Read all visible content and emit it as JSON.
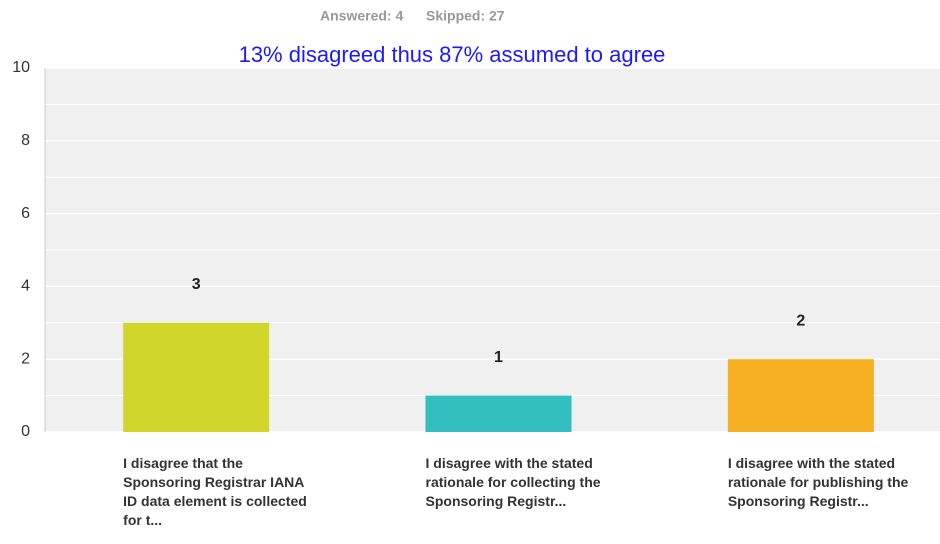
{
  "chart_data": {
    "type": "bar",
    "answered": "Answered: 4",
    "skipped": "Skipped: 27",
    "annotation": "13% disagreed thus 87% assumed to agree",
    "categories": [
      "I disagree that the Sponsoring Registrar IANA ID data element is collected for t...",
      "I disagree with the stated rationale for collecting the Sponsoring Registr...",
      "I disagree with the stated rationale for publishing the Sponsoring Registr..."
    ],
    "values": [
      3,
      1,
      2
    ],
    "colors": [
      "#d0d62a",
      "#33bfbf",
      "#f7b021"
    ],
    "ylim": [
      0,
      10
    ],
    "yticks": [
      0,
      2,
      4,
      6,
      8,
      10
    ],
    "minor_yticks": [
      1,
      3,
      5,
      7,
      9
    ],
    "grid": true
  }
}
